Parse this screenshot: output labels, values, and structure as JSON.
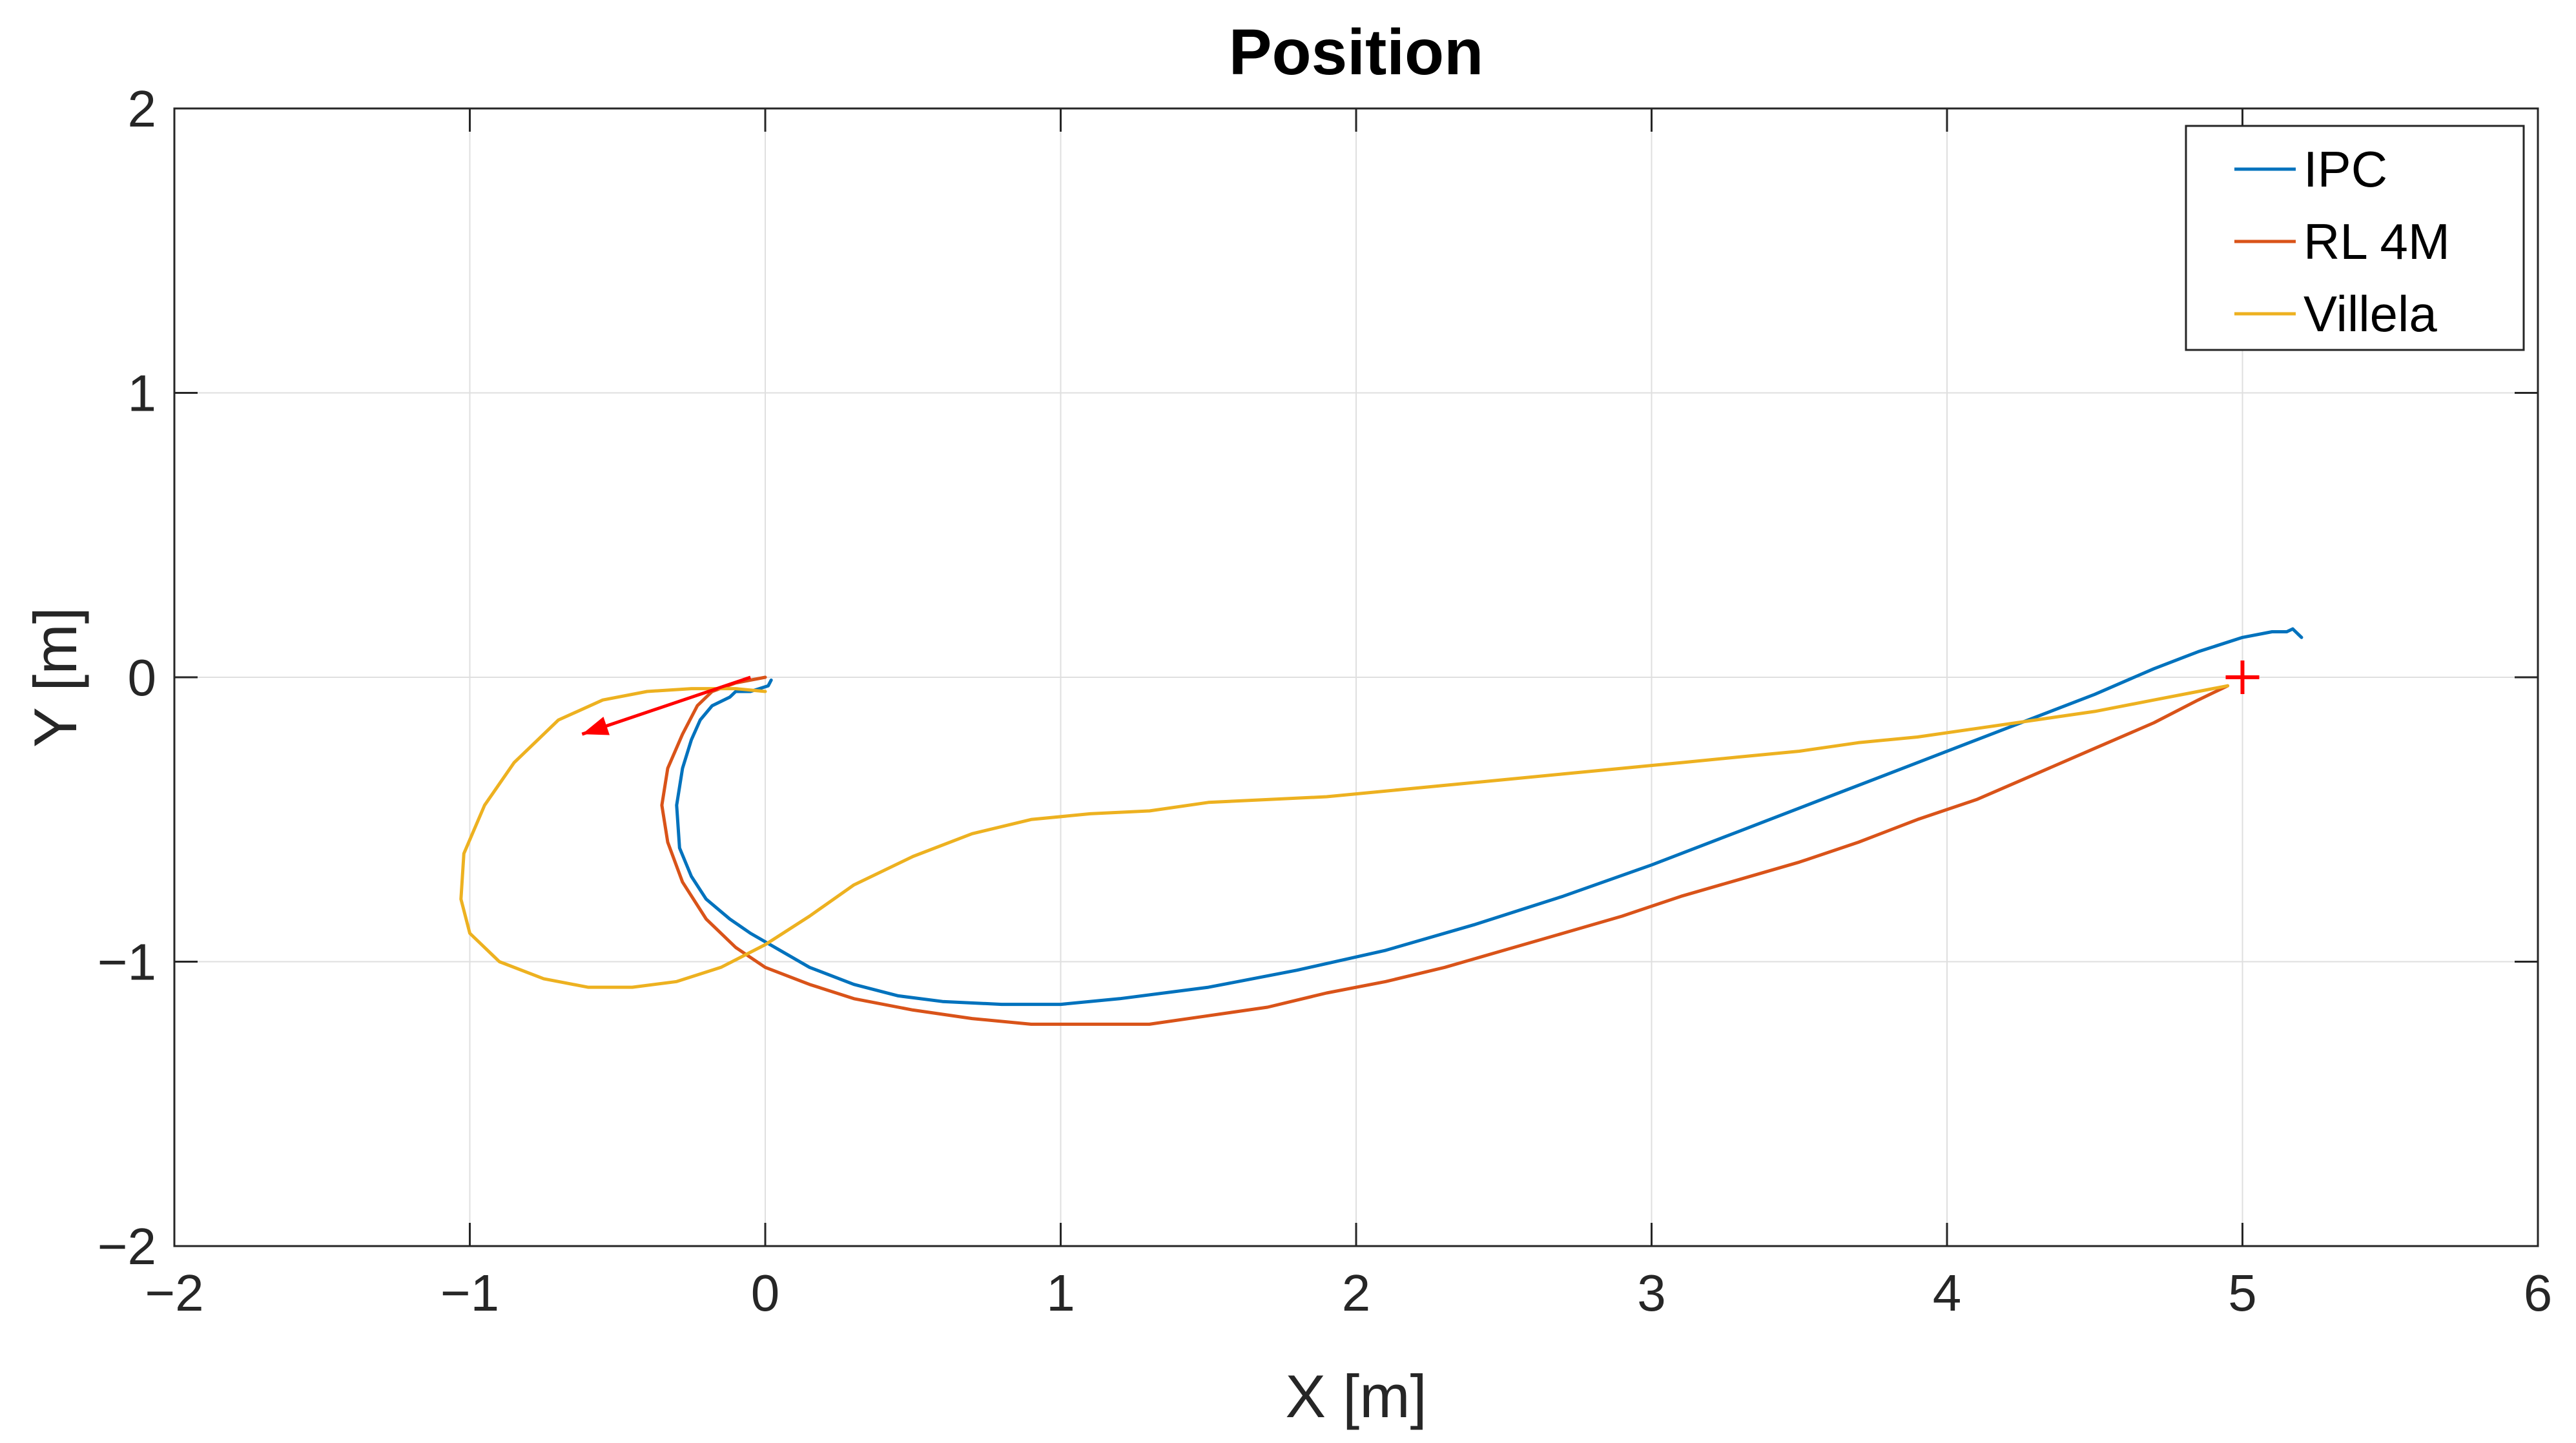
{
  "chart_data": {
    "type": "line",
    "title": "Position",
    "xlabel": "X [m]",
    "ylabel": "Y [m]",
    "xlim": [
      -2,
      6
    ],
    "ylim": [
      -2,
      2
    ],
    "xticks": [
      -2,
      -1,
      0,
      1,
      2,
      3,
      4,
      5,
      6
    ],
    "yticks": [
      -2,
      -1,
      0,
      1,
      2
    ],
    "xtick_labels": [
      "−2",
      "−1",
      "0",
      "1",
      "2",
      "3",
      "4",
      "5",
      "6"
    ],
    "ytick_labels": [
      "−2",
      "−1",
      "0",
      "1",
      "2"
    ],
    "grid": true,
    "legend_position": "top-right",
    "series": [
      {
        "name": "IPC",
        "color": "#0072bd",
        "x": [
          0.02,
          0.01,
          -0.05,
          -0.1,
          -0.12,
          -0.18,
          -0.22,
          -0.25,
          -0.28,
          -0.3,
          -0.29,
          -0.25,
          -0.2,
          -0.12,
          -0.05,
          0.05,
          0.15,
          0.3,
          0.45,
          0.6,
          0.8,
          1.0,
          1.2,
          1.5,
          1.8,
          2.1,
          2.4,
          2.7,
          3.0,
          3.3,
          3.6,
          3.9,
          4.2,
          4.5,
          4.7,
          4.85,
          5.0,
          5.1,
          5.15,
          5.17,
          5.2
        ],
        "y": [
          -0.01,
          -0.03,
          -0.05,
          -0.05,
          -0.07,
          -0.1,
          -0.15,
          -0.22,
          -0.32,
          -0.45,
          -0.6,
          -0.7,
          -0.78,
          -0.85,
          -0.9,
          -0.96,
          -1.02,
          -1.08,
          -1.12,
          -1.14,
          -1.15,
          -1.15,
          -1.13,
          -1.09,
          -1.03,
          -0.96,
          -0.87,
          -0.77,
          -0.66,
          -0.54,
          -0.42,
          -0.3,
          -0.18,
          -0.06,
          0.03,
          0.09,
          0.14,
          0.16,
          0.16,
          0.17,
          0.14
        ]
      },
      {
        "name": "RL 4M",
        "color": "#d95319",
        "x": [
          0.0,
          -0.1,
          -0.18,
          -0.23,
          -0.28,
          -0.33,
          -0.35,
          -0.33,
          -0.28,
          -0.2,
          -0.1,
          0.0,
          0.15,
          0.3,
          0.5,
          0.7,
          0.9,
          1.1,
          1.3,
          1.5,
          1.7,
          1.9,
          2.1,
          2.3,
          2.5,
          2.7,
          2.9,
          3.1,
          3.3,
          3.5,
          3.7,
          3.9,
          4.1,
          4.3,
          4.5,
          4.7,
          4.85,
          4.95
        ],
        "y": [
          0.0,
          -0.02,
          -0.05,
          -0.1,
          -0.2,
          -0.32,
          -0.45,
          -0.58,
          -0.72,
          -0.85,
          -0.95,
          -1.02,
          -1.08,
          -1.13,
          -1.17,
          -1.2,
          -1.22,
          -1.22,
          -1.22,
          -1.19,
          -1.16,
          -1.11,
          -1.07,
          -1.02,
          -0.96,
          -0.9,
          -0.84,
          -0.77,
          -0.71,
          -0.65,
          -0.58,
          -0.5,
          -0.43,
          -0.34,
          -0.25,
          -0.16,
          -0.08,
          -0.03
        ]
      },
      {
        "name": "Villela",
        "color": "#edb120",
        "x": [
          0.0,
          -0.1,
          -0.25,
          -0.4,
          -0.55,
          -0.7,
          -0.85,
          -0.95,
          -1.02,
          -1.03,
          -1.0,
          -0.9,
          -0.75,
          -0.6,
          -0.45,
          -0.3,
          -0.15,
          0.0,
          0.15,
          0.3,
          0.5,
          0.7,
          0.9,
          1.1,
          1.3,
          1.5,
          1.7,
          1.9,
          2.1,
          2.3,
          2.5,
          2.7,
          2.9,
          3.1,
          3.3,
          3.5,
          3.7,
          3.9,
          4.1,
          4.3,
          4.5,
          4.7,
          4.85,
          4.95
        ],
        "y": [
          -0.05,
          -0.04,
          -0.04,
          -0.05,
          -0.08,
          -0.15,
          -0.3,
          -0.45,
          -0.62,
          -0.78,
          -0.9,
          -1.0,
          -1.06,
          -1.09,
          -1.09,
          -1.07,
          -1.02,
          -0.94,
          -0.84,
          -0.73,
          -0.63,
          -0.55,
          -0.5,
          -0.48,
          -0.47,
          -0.44,
          -0.43,
          -0.42,
          -0.4,
          -0.38,
          -0.36,
          -0.34,
          -0.32,
          -0.3,
          -0.28,
          -0.26,
          -0.23,
          -0.21,
          -0.18,
          -0.15,
          -0.12,
          -0.08,
          -0.05,
          -0.03
        ]
      }
    ],
    "markers": [
      {
        "label": "+",
        "x": 5.0,
        "y": 0.0,
        "color": "#ff0000"
      }
    ],
    "arrows": [
      {
        "x_from": -0.05,
        "y_from": 0.0,
        "x_to": -0.62,
        "y_to": -0.2,
        "color": "#ff0000"
      }
    ]
  }
}
